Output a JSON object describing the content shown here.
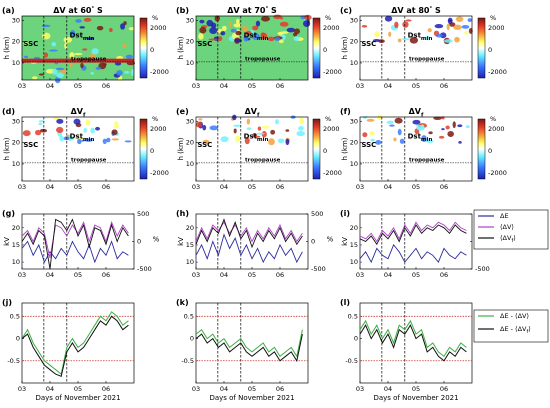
{
  "figure": {
    "x_ticks": [
      "03",
      "04",
      "05",
      "06"
    ],
    "x_axis_label": "Days of November 2021",
    "annotations": {
      "ssc": "SSC",
      "dst_base": "Dst",
      "dst_sub": "min",
      "tropopause": "tropopause"
    },
    "heatmap_rows": [
      {
        "y_axis_label": "h (km)",
        "y_ticks": [
          "10",
          "20",
          "30"
        ],
        "colorbar_unit": "%",
        "colorbar_ticks": [
          "2000",
          "0",
          "-2000"
        ],
        "panels": [
          {
            "label": "(a)",
            "title_base": "ΔV at 60",
            "title_sup": "°",
            "title_tail": " S"
          },
          {
            "label": "(b)",
            "title_base": "ΔV at 70",
            "title_sup": "°",
            "title_tail": " S"
          },
          {
            "label": "(c)",
            "title_base": "ΔV at 80",
            "title_sup": "°",
            "title_tail": " S"
          }
        ]
      },
      {
        "y_axis_label": "h (km)",
        "y_ticks": [
          "10",
          "20",
          "30"
        ],
        "colorbar_unit": "%",
        "colorbar_ticks": [
          "2000",
          "0",
          "-2000"
        ],
        "panels": [
          {
            "label": "(d)",
            "title_base": "ΔV",
            "title_sub": "f"
          },
          {
            "label": "(e)",
            "title_base": "ΔV",
            "title_sub": "f"
          },
          {
            "label": "(f)",
            "title_base": "ΔV",
            "title_sub": "f"
          }
        ]
      }
    ],
    "line_row_g": {
      "left_axis_label": "kV",
      "left_ticks": [
        "10",
        "15",
        "20"
      ],
      "right_axis_label": "%",
      "right_ticks": [
        "500",
        "0",
        "-500"
      ],
      "panels": [
        {
          "label": "(g)"
        },
        {
          "label": "(h)"
        },
        {
          "label": "(i)"
        }
      ],
      "legend": [
        {
          "text": "ΔE",
          "color": "#2b2b9e"
        },
        {
          "text": "⟨ΔV⟩",
          "color": "#b040c8"
        },
        {
          "text": "⟨ΔV",
          "sub": "f",
          "tail": "⟩",
          "color": "#111111"
        }
      ]
    },
    "line_row_j": {
      "left_ticks": [
        "0.5",
        "0",
        "-0.5"
      ],
      "panels": [
        {
          "label": "(j)"
        },
        {
          "label": "(k)"
        },
        {
          "label": "(l)"
        }
      ],
      "legend": [
        {
          "text": "ΔE - ⟨ΔV⟩",
          "color": "#3cb043"
        },
        {
          "text": "ΔE - ⟨ΔV",
          "sub": "f",
          "tail": "⟩",
          "color": "#111111"
        }
      ]
    },
    "colors": {
      "threshold_line": "#c0392b",
      "heatmap_background_top": "#6dd47e",
      "heatmap_background_rest": "#ffffff",
      "colorbar": [
        "#7b1a12",
        "#e33c2a",
        "#f6a13a",
        "#ffff66",
        "#ffffff",
        "#6ff2ff",
        "#3a7bff",
        "#1f1fb5"
      ]
    }
  },
  "chart_data": [
    {
      "type": "line",
      "panel": "(g)",
      "x": [
        3.0,
        3.2,
        3.4,
        3.6,
        3.8,
        4.0,
        4.2,
        4.4,
        4.6,
        4.8,
        5.0,
        5.2,
        5.4,
        5.6,
        5.8,
        6.0,
        6.2,
        6.4,
        6.6,
        6.8
      ],
      "series": [
        {
          "name": "ΔE",
          "axis": "left",
          "values": [
            14,
            16,
            12,
            15,
            10,
            13,
            11,
            14,
            12,
            16,
            13,
            11,
            15,
            10,
            14,
            12,
            16,
            11,
            13,
            12
          ]
        },
        {
          "name": "⟨ΔV⟩",
          "axis": "right",
          "values": [
            100,
            200,
            0,
            250,
            150,
            -300,
            300,
            250,
            100,
            300,
            150,
            350,
            0,
            300,
            250,
            0,
            350,
            100,
            300,
            150
          ]
        },
        {
          "name": "⟨ΔVf⟩",
          "axis": "right",
          "values": [
            0,
            150,
            -50,
            200,
            100,
            -500,
            400,
            350,
            200,
            400,
            100,
            300,
            -100,
            250,
            200,
            -50,
            300,
            0,
            250,
            100
          ]
        }
      ],
      "ylim_left": [
        8,
        24
      ],
      "ylim_right": [
        -500,
        500
      ]
    },
    {
      "type": "line",
      "panel": "(h)",
      "x": [
        3.0,
        3.2,
        3.4,
        3.6,
        3.8,
        4.0,
        4.2,
        4.4,
        4.6,
        4.8,
        5.0,
        5.2,
        5.4,
        5.6,
        5.8,
        6.0,
        6.2,
        6.4,
        6.6,
        6.8
      ],
      "series": [
        {
          "name": "ΔE",
          "axis": "left",
          "values": [
            12,
            15,
            11,
            16,
            12,
            18,
            14,
            17,
            12,
            15,
            11,
            14,
            10,
            13,
            11,
            15,
            12,
            14,
            10,
            13
          ]
        },
        {
          "name": "⟨ΔV⟩",
          "axis": "right",
          "values": [
            0,
            250,
            50,
            300,
            200,
            350,
            150,
            300,
            100,
            250,
            0,
            200,
            50,
            250,
            100,
            300,
            50,
            200,
            0,
            150
          ]
        },
        {
          "name": "⟨ΔVf⟩",
          "axis": "right",
          "values": [
            -50,
            200,
            0,
            250,
            150,
            400,
            100,
            350,
            50,
            200,
            -100,
            150,
            0,
            200,
            50,
            250,
            0,
            150,
            -50,
            100
          ]
        }
      ],
      "ylim_left": [
        8,
        24
      ],
      "ylim_right": [
        -500,
        500
      ]
    },
    {
      "type": "line",
      "panel": "(i)",
      "x": [
        3.0,
        3.2,
        3.4,
        3.6,
        3.8,
        4.0,
        4.2,
        4.4,
        4.6,
        4.8,
        5.0,
        5.2,
        5.4,
        5.6,
        5.8,
        6.0,
        6.2,
        6.4,
        6.6,
        6.8
      ],
      "series": [
        {
          "name": "ΔE",
          "axis": "left",
          "values": [
            11,
            13,
            10,
            14,
            12,
            11,
            15,
            13,
            10,
            12,
            14,
            11,
            13,
            12,
            10,
            14,
            12,
            11,
            13,
            12
          ]
        },
        {
          "name": "⟨ΔV⟩",
          "axis": "right",
          "values": [
            100,
            50,
            150,
            0,
            200,
            100,
            250,
            50,
            300,
            150,
            350,
            200,
            300,
            250,
            350,
            300,
            200,
            350,
            250,
            200
          ]
        },
        {
          "name": "⟨ΔVf⟩",
          "axis": "right",
          "values": [
            50,
            0,
            100,
            -50,
            150,
            50,
            200,
            0,
            250,
            100,
            300,
            150,
            250,
            200,
            300,
            250,
            150,
            300,
            200,
            150
          ]
        }
      ],
      "ylim_left": [
        8,
        24
      ],
      "ylim_right": [
        -500,
        500
      ]
    },
    {
      "type": "line",
      "panel": "(j)",
      "x": [
        3.0,
        3.2,
        3.4,
        3.6,
        3.8,
        4.0,
        4.2,
        4.4,
        4.6,
        4.8,
        5.0,
        5.2,
        5.4,
        5.6,
        5.8,
        6.0,
        6.2,
        6.4,
        6.6,
        6.8
      ],
      "series": [
        {
          "name": "ΔE - ⟨ΔV⟩",
          "values": [
            0.0,
            0.2,
            -0.1,
            -0.3,
            -0.5,
            -0.6,
            -0.7,
            -0.8,
            -0.2,
            0.0,
            -0.2,
            -0.1,
            0.1,
            0.3,
            0.5,
            0.4,
            0.6,
            0.5,
            0.3,
            0.4
          ]
        },
        {
          "name": "ΔE - ⟨ΔVf⟩",
          "values": [
            0.0,
            0.1,
            -0.2,
            -0.4,
            -0.6,
            -0.7,
            -0.8,
            -0.85,
            -0.3,
            -0.1,
            -0.3,
            -0.2,
            0.0,
            0.2,
            0.4,
            0.3,
            0.5,
            0.4,
            0.2,
            0.3
          ]
        }
      ],
      "ylim": [
        -1,
        0.8
      ],
      "thresholds": [
        0.5,
        -0.5
      ]
    },
    {
      "type": "line",
      "panel": "(k)",
      "x": [
        3.0,
        3.2,
        3.4,
        3.6,
        3.8,
        4.0,
        4.2,
        4.4,
        4.6,
        4.8,
        5.0,
        5.2,
        5.4,
        5.6,
        5.8,
        6.0,
        6.2,
        6.4,
        6.6,
        6.8
      ],
      "series": [
        {
          "name": "ΔE - ⟨ΔV⟩",
          "values": [
            0.1,
            0.2,
            0.0,
            0.1,
            -0.1,
            0.0,
            -0.2,
            -0.1,
            0.0,
            -0.2,
            -0.3,
            -0.2,
            -0.1,
            -0.3,
            -0.2,
            -0.4,
            -0.3,
            -0.2,
            -0.4,
            0.2
          ]
        },
        {
          "name": "ΔE - ⟨ΔVf⟩",
          "values": [
            0.0,
            0.1,
            -0.1,
            0.0,
            -0.2,
            -0.1,
            -0.3,
            -0.2,
            -0.1,
            -0.3,
            -0.4,
            -0.3,
            -0.2,
            -0.4,
            -0.3,
            -0.5,
            -0.4,
            -0.3,
            -0.5,
            0.1
          ]
        }
      ],
      "ylim": [
        -1,
        0.8
      ],
      "thresholds": [
        0.5,
        -0.5
      ]
    },
    {
      "type": "line",
      "panel": "(l)",
      "x": [
        3.0,
        3.2,
        3.4,
        3.6,
        3.8,
        4.0,
        4.2,
        4.4,
        4.6,
        4.8,
        5.0,
        5.2,
        5.4,
        5.6,
        5.8,
        6.0,
        6.2,
        6.4,
        6.6,
        6.8
      ],
      "series": [
        {
          "name": "ΔE - ⟨ΔV⟩",
          "values": [
            0.2,
            0.4,
            0.1,
            0.3,
            0.0,
            0.2,
            -0.1,
            0.3,
            0.2,
            0.4,
            0.1,
            0.2,
            -0.2,
            -0.1,
            -0.3,
            -0.4,
            -0.2,
            -0.3,
            -0.1,
            -0.2
          ]
        },
        {
          "name": "ΔE - ⟨ΔVf⟩",
          "values": [
            0.1,
            0.3,
            0.0,
            0.2,
            -0.1,
            0.1,
            -0.2,
            0.2,
            0.1,
            0.3,
            0.0,
            0.1,
            -0.3,
            -0.2,
            -0.4,
            -0.5,
            -0.3,
            -0.4,
            -0.2,
            -0.3
          ]
        }
      ],
      "ylim": [
        -1,
        0.8
      ],
      "thresholds": [
        0.5,
        -0.5
      ]
    }
  ]
}
